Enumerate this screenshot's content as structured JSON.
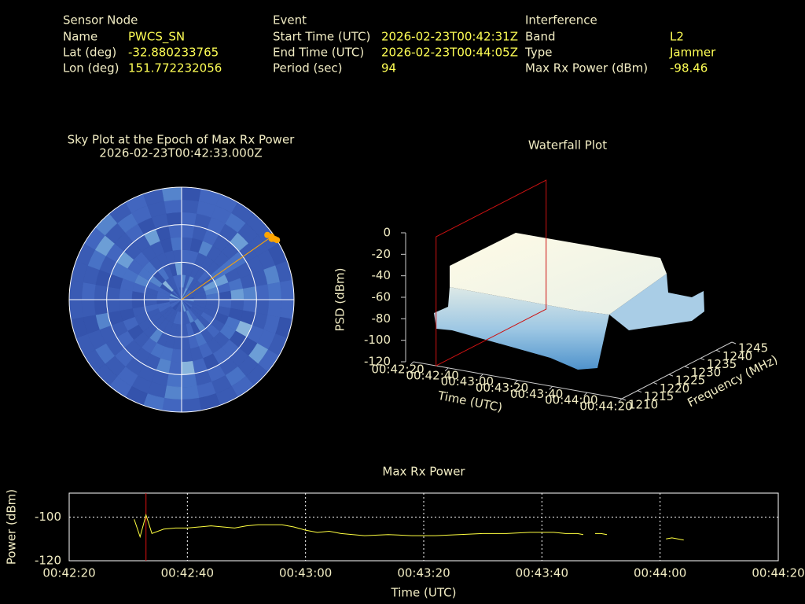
{
  "header": {
    "sections": [
      {
        "title": "Sensor Node",
        "rows": [
          [
            "Name",
            "PWCS_SN"
          ],
          [
            "Lat (deg)",
            "-32.880233765"
          ],
          [
            "Lon (deg)",
            "151.772232056"
          ]
        ]
      },
      {
        "title": "Event",
        "rows": [
          [
            "Start Time (UTC)",
            "2026-02-23T00:42:31Z"
          ],
          [
            "End Time (UTC)",
            "2026-02-23T00:44:05Z"
          ],
          [
            "Period (sec)",
            "94"
          ]
        ]
      },
      {
        "title": "Interference",
        "rows": [
          [
            "Band",
            "L2"
          ],
          [
            "Type",
            "Jammer"
          ],
          [
            "Max Rx Power (dBm)",
            "-98.46"
          ]
        ]
      }
    ]
  },
  "chart_data": [
    {
      "type": "polar",
      "title": "Sky Plot at the Epoch of Max Rx Power",
      "subtitle": "2026-02-23T00:42:33.000Z",
      "rlim": [
        90,
        0
      ],
      "rgrid": [
        60,
        30,
        0
      ],
      "color": "#ffa500",
      "azimuth": [
        55,
        53,
        57,
        58,
        56
      ],
      "elevation": [
        2,
        4,
        1,
        0,
        3
      ]
    },
    {
      "type": "surface3d",
      "title": "Waterfall Plot",
      "xlabel": "Time (UTC)",
      "ylabel": "Frequency (MHz)",
      "zlabel": "PSD (dBm)",
      "xlim": [
        "00:42:20",
        "00:44:20"
      ],
      "xticks": [
        "00:42:20",
        "00:42:40",
        "00:43:00",
        "00:43:20",
        "00:43:40",
        "00:44:00",
        "00:44:20"
      ],
      "ylim": [
        1210,
        1245
      ],
      "yticks": [
        1210,
        1215,
        1220,
        1225,
        1230,
        1235,
        1240,
        1245
      ],
      "zlim": [
        -120,
        0
      ],
      "zticks": [
        0,
        -20,
        -40,
        -60,
        -80,
        -100,
        -120
      ],
      "marker_x": "00:42:33",
      "marker_color": "#cc1111"
    },
    {
      "type": "line",
      "title": "Max Rx Power",
      "xlabel": "Time (UTC)",
      "ylabel": "Power (dBm)",
      "x": [
        "00:42:31",
        "00:42:32",
        "00:42:33",
        "00:42:34",
        "00:42:36",
        "00:42:38",
        "00:42:40",
        "00:42:42",
        "00:42:44",
        "00:42:46",
        "00:42:48",
        "00:42:50",
        "00:42:52",
        "00:42:56",
        "00:42:58",
        "00:43:00",
        "00:43:02",
        "00:43:04",
        "00:43:06",
        "00:43:10",
        "00:43:14",
        "00:43:18",
        "00:43:22",
        "00:43:26",
        "00:43:30",
        "00:43:34",
        "00:43:38",
        "00:43:42",
        "00:43:44",
        "00:43:46",
        "00:43:47",
        "00:43:48",
        "00:43:49",
        "00:43:50",
        "00:43:51",
        "00:43:55",
        "00:44:01",
        "00:44:02",
        "00:44:04"
      ],
      "values": [
        -101,
        -109,
        -99,
        -107.5,
        -105.5,
        -105,
        -105,
        -104.5,
        -104,
        -104.5,
        -105,
        -104,
        -103.5,
        -103.5,
        -104.5,
        -106,
        -107,
        -106.5,
        -107.5,
        -108.5,
        -108,
        -108.5,
        -108.5,
        -108,
        -107.5,
        -107.5,
        -107,
        -107,
        -107.5,
        -107.5,
        -108,
        null,
        -107.5,
        -107.5,
        -108,
        null,
        -110,
        -109.5,
        -110.5
      ],
      "color": "#ffff40",
      "xlim": [
        "00:42:20",
        "00:44:20"
      ],
      "xticks": [
        "00:42:20",
        "00:42:40",
        "00:43:00",
        "00:43:20",
        "00:43:40",
        "00:44:00",
        "00:44:20"
      ],
      "ylim": [
        -120,
        -89
      ],
      "yticks": [
        -120,
        -100
      ],
      "grid": true,
      "marker_x": "00:42:33",
      "marker_color": "#dd1111"
    }
  ]
}
